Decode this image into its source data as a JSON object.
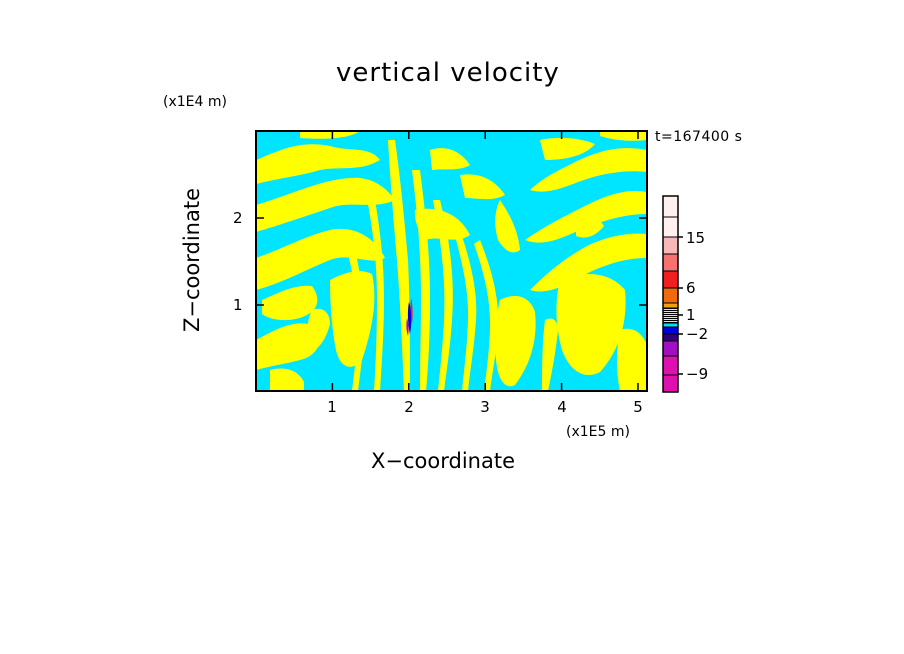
{
  "chart_data": {
    "type": "heatmap",
    "title": "vertical velocity",
    "xlabel": "X−coordinate",
    "ylabel": "Z−coordinate",
    "x_unit_label": "(x1E5 m)",
    "y_unit_label": "(x1E4 m)",
    "time_label": "t=167400 s",
    "x_ticks": [
      "1",
      "2",
      "3",
      "4",
      "5"
    ],
    "x_tick_values": [
      1,
      2,
      3,
      4,
      5
    ],
    "y_ticks": [
      "1",
      "2"
    ],
    "y_tick_values": [
      1,
      2
    ],
    "xlim": [
      0,
      5.12
    ],
    "ylim": [
      0,
      2.95
    ],
    "colorbar": {
      "tick_labels": [
        "15",
        "6",
        "1",
        "−2",
        "−9"
      ],
      "levels": [
        {
          "color": "#fff0f0"
        },
        {
          "color": "#fff0f0"
        },
        {
          "color": "#f8b8b8"
        },
        {
          "color": "#f87070"
        },
        {
          "color": "#f02020"
        },
        {
          "color": "#f06a10"
        },
        {
          "color": "#f0a010"
        },
        {
          "color": "#ffff00"
        },
        {
          "color": "#ffff00"
        },
        {
          "color": "#00e0ff"
        },
        {
          "color": "#0000e0"
        },
        {
          "color": "#30007a"
        },
        {
          "color": "#a010c0"
        },
        {
          "color": "#e010b0"
        }
      ]
    },
    "field_colors": {
      "positive": "#ffff00",
      "negative": "#00e5ff"
    }
  }
}
